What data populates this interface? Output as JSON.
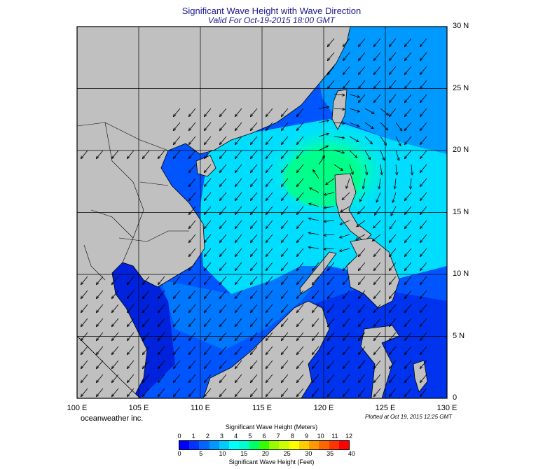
{
  "title": "Significant Wave Height with Wave Direction",
  "subtitle": "Valid For Oct-19-2015 18:00 GMT",
  "company": "oceanweather inc.",
  "plotted": "Plotted at Oct 19, 2015 12:25 GMT",
  "lat_labels": [
    "30 N",
    "25 N",
    "20 N",
    "15 N",
    "10 N",
    "5 N",
    "0"
  ],
  "lon_labels": [
    "100 E",
    "105 E",
    "110 E",
    "115 E",
    "120 E",
    "125 E",
    "130 E"
  ],
  "legend": {
    "meters_title": "Significant Wave Height (Meters)",
    "feet_title": "Significant Wave Height (Feet)",
    "meters_ticks": [
      "0",
      "1",
      "2",
      "3",
      "4",
      "5",
      "6",
      "7",
      "8",
      "9",
      "10",
      "11",
      "12"
    ],
    "feet_ticks": [
      "0",
      "5",
      "10",
      "15",
      "20",
      "25",
      "30",
      "35",
      "40"
    ],
    "colors": [
      "#0000ff",
      "#0033ff",
      "#0066ff",
      "#0099ff",
      "#00ccff",
      "#00ffff",
      "#00ffcc",
      "#00ff66",
      "#33ff00",
      "#99ff00",
      "#ccff00",
      "#ffff00",
      "#ffcc00",
      "#ff9900",
      "#ff6600",
      "#ff3300",
      "#ff0000"
    ]
  },
  "colors": {
    "land": "#c0c0c0",
    "title": "#1a1a8c"
  },
  "wave_scale_colors": {
    "deep_blue": "#0000e6",
    "blue": "#0033ff",
    "mid_blue": "#0066ff",
    "light_blue": "#0099ff",
    "cyan": "#00e5ff",
    "aqua": "#00ffcc",
    "green": "#00ff66"
  }
}
